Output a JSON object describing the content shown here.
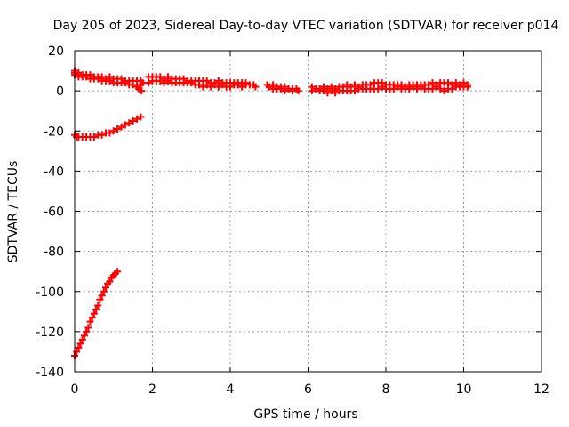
{
  "chart_data": {
    "type": "scatter",
    "title": "Day 205 of 2023, Sidereal Day-to-day VTEC variation (SDTVAR) for receiver p014",
    "xlabel": "GPS time / hours",
    "ylabel": "SDTVAR / TECUs",
    "xlim": [
      0,
      12
    ],
    "ylim": [
      -140,
      20
    ],
    "xticks": [
      0,
      2,
      4,
      6,
      8,
      10,
      12
    ],
    "yticks": [
      -140,
      -120,
      -100,
      -80,
      -60,
      -40,
      -20,
      0,
      20
    ],
    "grid": true,
    "marker": "plus",
    "series_color": "#ff0000",
    "series": [
      {
        "name": "main-band",
        "points": [
          [
            0.0,
            10
          ],
          [
            0.0,
            9
          ],
          [
            0.0,
            8
          ],
          [
            0.1,
            9
          ],
          [
            0.1,
            8
          ],
          [
            0.1,
            7
          ],
          [
            0.2,
            8
          ],
          [
            0.2,
            7
          ],
          [
            0.3,
            8
          ],
          [
            0.3,
            7
          ],
          [
            0.4,
            8
          ],
          [
            0.4,
            6
          ],
          [
            0.5,
            7
          ],
          [
            0.5,
            6
          ],
          [
            0.6,
            7
          ],
          [
            0.6,
            6
          ],
          [
            0.7,
            7
          ],
          [
            0.7,
            5
          ],
          [
            0.8,
            6
          ],
          [
            0.8,
            5
          ],
          [
            0.9,
            7
          ],
          [
            0.9,
            5
          ],
          [
            1.0,
            6
          ],
          [
            1.0,
            4
          ],
          [
            1.1,
            6
          ],
          [
            1.1,
            4
          ],
          [
            1.2,
            6
          ],
          [
            1.2,
            4
          ],
          [
            1.3,
            5
          ],
          [
            1.3,
            4
          ],
          [
            1.4,
            5
          ],
          [
            1.4,
            3
          ],
          [
            1.5,
            5
          ],
          [
            1.5,
            3
          ],
          [
            1.6,
            5
          ],
          [
            1.6,
            2
          ],
          [
            1.65,
            1
          ],
          [
            1.7,
            5
          ],
          [
            1.7,
            3
          ],
          [
            1.72,
            0
          ],
          [
            1.75,
            4
          ],
          [
            1.9,
            7
          ],
          [
            1.9,
            4
          ],
          [
            2.0,
            7
          ],
          [
            2.0,
            5
          ],
          [
            2.1,
            7
          ],
          [
            2.1,
            5
          ],
          [
            2.2,
            7
          ],
          [
            2.2,
            5
          ],
          [
            2.3,
            6
          ],
          [
            2.3,
            4
          ],
          [
            2.4,
            7
          ],
          [
            2.4,
            5
          ],
          [
            2.5,
            6
          ],
          [
            2.5,
            4
          ],
          [
            2.6,
            6
          ],
          [
            2.6,
            4
          ],
          [
            2.7,
            6
          ],
          [
            2.7,
            4
          ],
          [
            2.8,
            6
          ],
          [
            2.8,
            4
          ],
          [
            2.9,
            5
          ],
          [
            2.9,
            4
          ],
          [
            3.0,
            5
          ],
          [
            3.0,
            4
          ],
          [
            3.1,
            5
          ],
          [
            3.1,
            3
          ],
          [
            3.2,
            5
          ],
          [
            3.2,
            3
          ],
          [
            3.3,
            5
          ],
          [
            3.3,
            2
          ],
          [
            3.4,
            5
          ],
          [
            3.4,
            3
          ],
          [
            3.5,
            4
          ],
          [
            3.5,
            2
          ],
          [
            3.6,
            4
          ],
          [
            3.6,
            3
          ],
          [
            3.7,
            5
          ],
          [
            3.7,
            2
          ],
          [
            3.8,
            4
          ],
          [
            3.8,
            3
          ],
          [
            3.9,
            4
          ],
          [
            3.9,
            2
          ],
          [
            4.0,
            4
          ],
          [
            4.0,
            2
          ],
          [
            4.1,
            4
          ],
          [
            4.1,
            3
          ],
          [
            4.2,
            4
          ],
          [
            4.2,
            3
          ],
          [
            4.3,
            4
          ],
          [
            4.3,
            2
          ],
          [
            4.4,
            4
          ],
          [
            4.4,
            3
          ],
          [
            4.5,
            3
          ],
          [
            4.6,
            3
          ],
          [
            4.65,
            2
          ],
          [
            4.95,
            3
          ],
          [
            5.0,
            2
          ],
          [
            5.1,
            3
          ],
          [
            5.1,
            1
          ],
          [
            5.2,
            2
          ],
          [
            5.2,
            1
          ],
          [
            5.3,
            2
          ],
          [
            5.3,
            1
          ],
          [
            5.4,
            2
          ],
          [
            5.4,
            0
          ],
          [
            5.5,
            1
          ],
          [
            5.6,
            1
          ],
          [
            5.6,
            0
          ],
          [
            5.7,
            1
          ],
          [
            5.75,
            0
          ],
          [
            6.1,
            2
          ],
          [
            6.1,
            0
          ],
          [
            6.2,
            1
          ],
          [
            6.3,
            1
          ],
          [
            6.3,
            0
          ],
          [
            6.4,
            2
          ],
          [
            6.4,
            0
          ],
          [
            6.5,
            1
          ],
          [
            6.5,
            -1
          ],
          [
            6.6,
            2
          ],
          [
            6.6,
            0
          ],
          [
            6.7,
            1
          ],
          [
            6.7,
            -1
          ],
          [
            6.8,
            2
          ],
          [
            6.8,
            0
          ],
          [
            6.9,
            2
          ],
          [
            6.9,
            0
          ],
          [
            7.0,
            3
          ],
          [
            7.0,
            0
          ],
          [
            7.1,
            2
          ],
          [
            7.1,
            0
          ],
          [
            7.2,
            3
          ],
          [
            7.2,
            0
          ],
          [
            7.3,
            2
          ],
          [
            7.3,
            1
          ],
          [
            7.4,
            3
          ],
          [
            7.4,
            1
          ],
          [
            7.5,
            3
          ],
          [
            7.5,
            1
          ],
          [
            7.6,
            3
          ],
          [
            7.6,
            1
          ],
          [
            7.7,
            4
          ],
          [
            7.7,
            1
          ],
          [
            7.8,
            4
          ],
          [
            7.8,
            1
          ],
          [
            7.9,
            4
          ],
          [
            7.9,
            2
          ],
          [
            8.0,
            3
          ],
          [
            8.0,
            1
          ],
          [
            8.1,
            3
          ],
          [
            8.1,
            1
          ],
          [
            8.2,
            3
          ],
          [
            8.2,
            1
          ],
          [
            8.3,
            3
          ],
          [
            8.3,
            2
          ],
          [
            8.4,
            3
          ],
          [
            8.4,
            1
          ],
          [
            8.5,
            2
          ],
          [
            8.5,
            1
          ],
          [
            8.6,
            3
          ],
          [
            8.6,
            1
          ],
          [
            8.7,
            3
          ],
          [
            8.7,
            2
          ],
          [
            8.8,
            3
          ],
          [
            8.8,
            1
          ],
          [
            8.9,
            3
          ],
          [
            8.9,
            2
          ],
          [
            9.0,
            3
          ],
          [
            9.0,
            1
          ],
          [
            9.1,
            3
          ],
          [
            9.1,
            1
          ],
          [
            9.2,
            4
          ],
          [
            9.2,
            1
          ],
          [
            9.3,
            3
          ],
          [
            9.3,
            2
          ],
          [
            9.4,
            4
          ],
          [
            9.4,
            1
          ],
          [
            9.5,
            4
          ],
          [
            9.5,
            0
          ],
          [
            9.6,
            4
          ],
          [
            9.6,
            1
          ],
          [
            9.7,
            3
          ],
          [
            9.7,
            1
          ],
          [
            9.8,
            4
          ],
          [
            9.8,
            2
          ],
          [
            9.9,
            3
          ],
          [
            9.9,
            2
          ],
          [
            10.0,
            4
          ],
          [
            10.0,
            2
          ],
          [
            10.1,
            3
          ],
          [
            10.1,
            2
          ]
        ]
      },
      {
        "name": "secondary-band",
        "points": [
          [
            0.0,
            -22
          ],
          [
            0.05,
            -23
          ],
          [
            0.1,
            -23
          ],
          [
            0.2,
            -23
          ],
          [
            0.3,
            -23
          ],
          [
            0.4,
            -23
          ],
          [
            0.5,
            -23
          ],
          [
            0.6,
            -22
          ],
          [
            0.7,
            -22
          ],
          [
            0.8,
            -21
          ],
          [
            0.9,
            -21
          ],
          [
            1.0,
            -20
          ],
          [
            1.1,
            -19
          ],
          [
            1.2,
            -18
          ],
          [
            1.3,
            -17
          ],
          [
            1.4,
            -16
          ],
          [
            1.5,
            -15
          ],
          [
            1.6,
            -14
          ],
          [
            1.7,
            -13
          ]
        ]
      },
      {
        "name": "steep-band",
        "points": [
          [
            0.0,
            -132
          ],
          [
            0.05,
            -130
          ],
          [
            0.1,
            -128
          ],
          [
            0.15,
            -126
          ],
          [
            0.2,
            -124
          ],
          [
            0.25,
            -122
          ],
          [
            0.3,
            -120
          ],
          [
            0.35,
            -118
          ],
          [
            0.4,
            -115
          ],
          [
            0.45,
            -113
          ],
          [
            0.5,
            -111
          ],
          [
            0.55,
            -109
          ],
          [
            0.6,
            -107
          ],
          [
            0.65,
            -104
          ],
          [
            0.7,
            -102
          ],
          [
            0.75,
            -100
          ],
          [
            0.8,
            -98
          ],
          [
            0.85,
            -96
          ],
          [
            0.9,
            -95
          ],
          [
            0.95,
            -93
          ],
          [
            1.0,
            -92
          ],
          [
            1.05,
            -91
          ],
          [
            1.1,
            -90
          ]
        ]
      }
    ]
  }
}
